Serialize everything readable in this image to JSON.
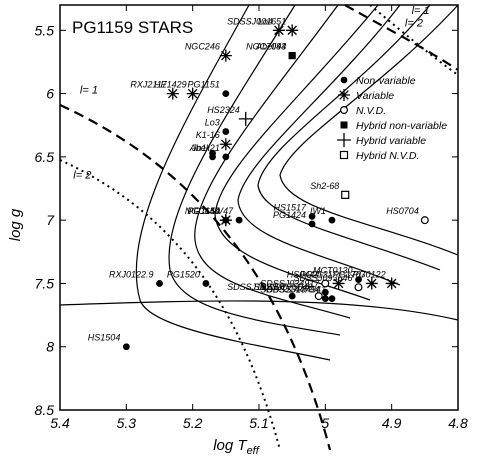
{
  "chart_data": {
    "type": "scatter",
    "title": "PG1159 STARS",
    "xlabel": "log T",
    "xlabel_sub": "eff",
    "ylabel": "log g",
    "xlim": [
      5.4,
      4.8
    ],
    "ylim": [
      5.3,
      8.5
    ],
    "x_ticks": [
      5.4,
      5.3,
      5.2,
      5.1,
      5.0,
      4.9,
      4.8
    ],
    "x_tick_labels": [
      "5.4",
      "5.3",
      "5.2",
      "5.1",
      "5",
      "4.9",
      "4.8"
    ],
    "y_ticks": [
      5.5,
      6.0,
      6.5,
      7.0,
      7.5,
      8.0,
      8.5
    ],
    "y_tick_labels": [
      "5.5",
      "6",
      "6.5",
      "7",
      "7.5",
      "8",
      "8.5"
    ],
    "legend": {
      "position": "top-right",
      "entries": [
        {
          "marker": "circle-filled",
          "label": "Non-variable"
        },
        {
          "marker": "asterisk",
          "label": "Variable"
        },
        {
          "marker": "circle-open",
          "label": "N.V.D."
        },
        {
          "marker": "square-filled",
          "label": "Hybrid non-variable"
        },
        {
          "marker": "plus",
          "label": "Hybrid variable"
        },
        {
          "marker": "square-open",
          "label": "Hybrid N.V.D."
        }
      ]
    },
    "region_labels": [
      {
        "text": "l= 1",
        "x": 5.37,
        "y": 6.0
      },
      {
        "text": "l= 2",
        "x": 5.38,
        "y": 6.67
      },
      {
        "text": "l= 1",
        "x": 4.87,
        "y": 5.37
      },
      {
        "text": "l= 2",
        "x": 4.88,
        "y": 5.47
      }
    ],
    "points": [
      {
        "name": "SDSSJ001651",
        "x": 5.05,
        "y": 5.5,
        "marker": "asterisk",
        "label": "SDSSJ001651"
      },
      {
        "name": "Lo4",
        "x": 5.07,
        "y": 5.5,
        "marker": "asterisk",
        "label": "Lo4"
      },
      {
        "name": "NGC246",
        "x": 5.15,
        "y": 5.7,
        "marker": "asterisk",
        "label": "NGC246"
      },
      {
        "name": "Abell43",
        "x": 5.05,
        "y": 5.7,
        "marker": "square-filled",
        "label": "Abell43"
      },
      {
        "name": "NGC7094",
        "x": 5.05,
        "y": 5.7,
        "marker": "square-filled",
        "label": "NGC7094"
      },
      {
        "name": "RXJ2117",
        "x": 5.23,
        "y": 6.0,
        "marker": "asterisk",
        "label": "RXJ2117"
      },
      {
        "name": "HE1429",
        "x": 5.2,
        "y": 6.0,
        "marker": "asterisk",
        "label": "HE1429"
      },
      {
        "name": "PG1151",
        "x": 5.15,
        "y": 6.0,
        "marker": "circle-filled",
        "label": "PG1151"
      },
      {
        "name": "HS2324",
        "x": 5.12,
        "y": 6.2,
        "marker": "plus",
        "label": "HS2324"
      },
      {
        "name": "Lo3",
        "x": 5.15,
        "y": 6.3,
        "marker": "circle-filled",
        "label": "Lo3"
      },
      {
        "name": "K1-16",
        "x": 5.15,
        "y": 6.4,
        "marker": "asterisk",
        "label": "K1-16"
      },
      {
        "name": "Jn1",
        "x": 5.17,
        "y": 6.5,
        "marker": "circle-filled",
        "label": "Jn1"
      },
      {
        "name": "Jn1b",
        "x": 5.17,
        "y": 6.47,
        "marker": "circle-filled",
        "label": ""
      },
      {
        "name": "Abell21",
        "x": 5.15,
        "y": 6.5,
        "marker": "circle-filled",
        "label": "Abell21"
      },
      {
        "name": "PG1144",
        "x": 5.15,
        "y": 7.0,
        "marker": "asterisk",
        "label": "PG1144"
      },
      {
        "name": "PG1159",
        "x": 5.15,
        "y": 7.0,
        "marker": "asterisk",
        "label": "PG1159"
      },
      {
        "name": "NGC650",
        "x": 5.15,
        "y": 7.0,
        "marker": "circle-filled",
        "label": "NGC650"
      },
      {
        "name": "VV47",
        "x": 5.13,
        "y": 7.0,
        "marker": "circle-filled",
        "label": "VV47"
      },
      {
        "name": "Sh2-68",
        "x": 4.97,
        "y": 6.8,
        "marker": "square-open",
        "label": "Sh2-68"
      },
      {
        "name": "HS1517",
        "x": 5.02,
        "y": 6.97,
        "marker": "circle-filled",
        "label": "HS1517"
      },
      {
        "name": "PG1424",
        "x": 5.02,
        "y": 7.03,
        "marker": "circle-filled",
        "label": "PG1424"
      },
      {
        "name": "IW1",
        "x": 4.99,
        "y": 7.0,
        "marker": "circle-filled",
        "label": "IW1"
      },
      {
        "name": "HS0704",
        "x": 4.85,
        "y": 7.0,
        "marker": "circle-open",
        "label": "HS0704"
      },
      {
        "name": "RXJ0122.9",
        "x": 5.25,
        "y": 7.5,
        "marker": "circle-filled",
        "label": "RXJ0122.9"
      },
      {
        "name": "PG1520",
        "x": 5.18,
        "y": 7.5,
        "marker": "circle-filled",
        "label": "PG1520"
      },
      {
        "name": "HS0444",
        "x": 5.0,
        "y": 7.5,
        "marker": "circle-open",
        "label": "HS0444"
      },
      {
        "name": "PG2131",
        "x": 4.98,
        "y": 7.5,
        "marker": "asterisk",
        "label": "PG2131"
      },
      {
        "name": "MCT0130",
        "x": 4.95,
        "y": 7.47,
        "marker": "circle-filled",
        "label": "MCT0130"
      },
      {
        "name": "PG1707",
        "x": 4.93,
        "y": 7.5,
        "marker": "asterisk",
        "label": "PG1707"
      },
      {
        "name": "PG0122",
        "x": 4.9,
        "y": 7.5,
        "marker": "asterisk",
        "label": "PG0122"
      },
      {
        "name": "SDSSJ093546",
        "x": 4.95,
        "y": 7.53,
        "marker": "circle-open",
        "label": "SDSSJ093546"
      },
      {
        "name": "SDSSJ102327",
        "x": 5.05,
        "y": 7.6,
        "marker": "circle-filled",
        "label": "SDSSJ102327"
      },
      {
        "name": "SDSSJ034917",
        "x": 5.0,
        "y": 7.57,
        "marker": "circle-filled",
        "label": "SDSSJ034917"
      },
      {
        "name": "SDSSJ144734",
        "x": 5.0,
        "y": 7.62,
        "marker": "circle-filled",
        "label": "SDSSJ144734"
      },
      {
        "name": "SDSSJ134341",
        "x": 4.99,
        "y": 7.62,
        "marker": "circle-filled",
        "label": "SDSSJ134341"
      },
      {
        "name": "SDSSJ075540",
        "x": 5.01,
        "y": 7.6,
        "marker": "circle-open",
        "label": "SDSSJ075540"
      },
      {
        "name": "HS1504",
        "x": 5.3,
        "y": 8.0,
        "marker": "circle-filled",
        "label": "HS1504"
      }
    ]
  }
}
